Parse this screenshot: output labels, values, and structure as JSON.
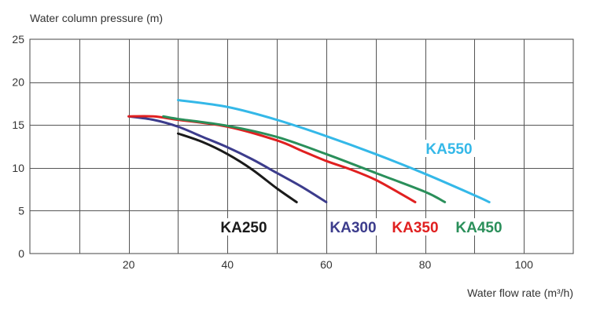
{
  "chart_data": {
    "type": "line",
    "ylabel": "Water column pressure (m)",
    "xlabel": "Water flow rate (m³/h)",
    "xlim": [
      0,
      110
    ],
    "ylim": [
      0,
      25
    ],
    "x_ticks": [
      20,
      40,
      60,
      80,
      100
    ],
    "y_ticks": [
      0,
      5,
      10,
      15,
      20,
      25
    ],
    "x_tick_labels": [
      "20",
      "40",
      "60",
      "80",
      "100"
    ],
    "y_tick_labels": [
      "0",
      "5",
      "10",
      "15",
      "20",
      "25"
    ],
    "grid": true,
    "series": [
      {
        "name": "KA250",
        "color": "#1a1a1a",
        "x": [
          30,
          35,
          40,
          45,
          50,
          54
        ],
        "y": [
          14.0,
          13.0,
          11.6,
          9.8,
          7.6,
          6.0
        ]
      },
      {
        "name": "KA300",
        "color": "#3c3c8c",
        "x": [
          20,
          25,
          30,
          35,
          40,
          45,
          50,
          55,
          60
        ],
        "y": [
          16.0,
          15.6,
          14.8,
          13.6,
          12.4,
          11.0,
          9.4,
          7.8,
          6.0
        ]
      },
      {
        "name": "KA350",
        "color": "#e02020",
        "x": [
          20,
          25,
          30,
          40,
          50,
          55,
          60,
          65,
          70,
          75,
          78
        ],
        "y": [
          16.0,
          16.0,
          15.6,
          14.8,
          13.2,
          12.0,
          10.8,
          9.8,
          8.6,
          7.0,
          6.0
        ]
      },
      {
        "name": "KA450",
        "color": "#2a8f5a",
        "x": [
          27,
          30,
          40,
          50,
          60,
          70,
          80,
          84
        ],
        "y": [
          16.0,
          15.7,
          14.9,
          13.6,
          11.6,
          9.4,
          7.2,
          6.0
        ]
      },
      {
        "name": "KA550",
        "color": "#34b8e8",
        "x": [
          30,
          40,
          50,
          60,
          70,
          80,
          90,
          93
        ],
        "y": [
          17.9,
          17.1,
          15.6,
          13.7,
          11.6,
          9.3,
          6.8,
          6.0
        ]
      }
    ]
  }
}
